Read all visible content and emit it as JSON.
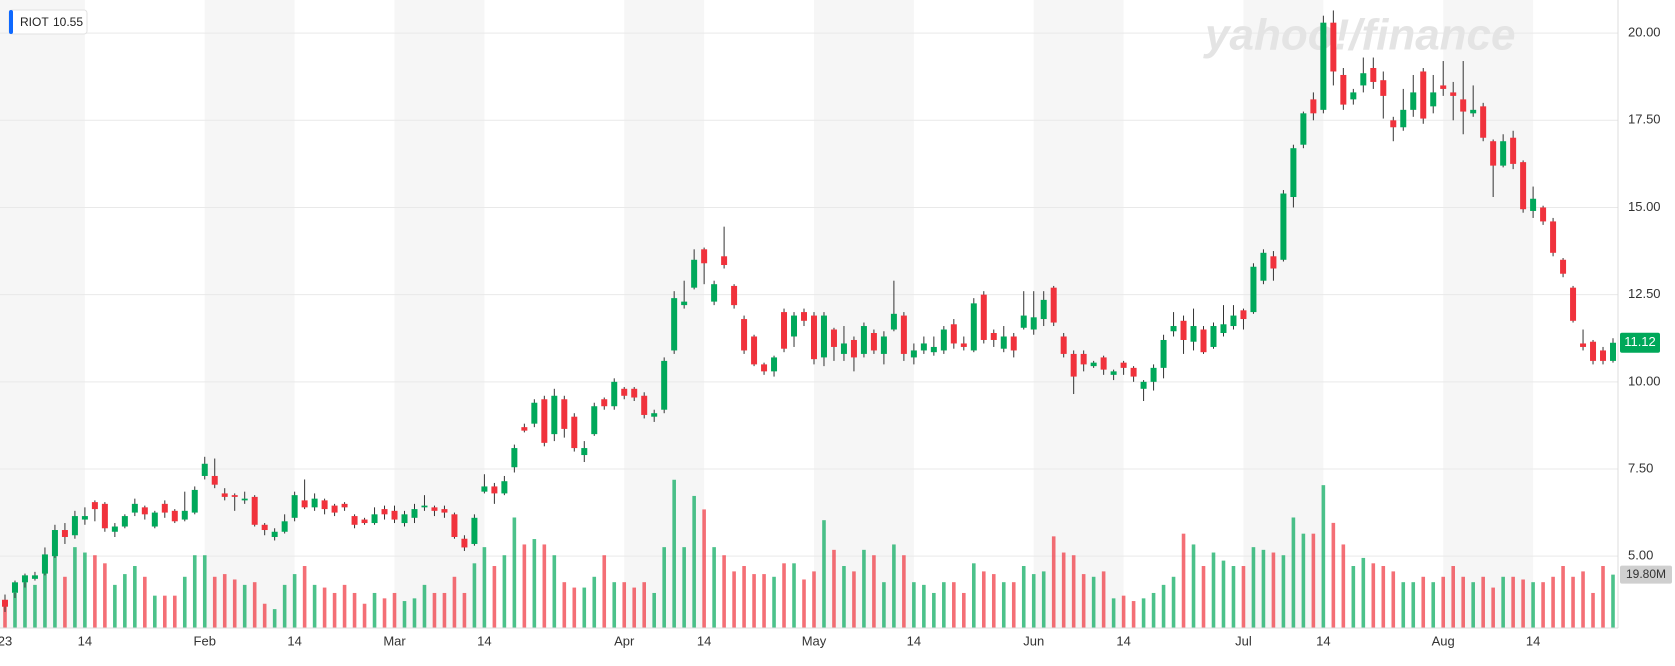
{
  "chart_data": {
    "type": "candlestick",
    "ticker": "RIOT",
    "ticker_value": "10.55",
    "watermark": "yahoo!/finance",
    "up_color": "#00a85a",
    "down_color": "#f0323c",
    "grid": true,
    "ylim": [
      2.94,
      20.95
    ],
    "yticks": [
      {
        "value": 5,
        "label": "5.00"
      },
      {
        "value": 7.5,
        "label": "7.50"
      },
      {
        "value": 10,
        "label": "10.00"
      },
      {
        "value": 12.5,
        "label": "12.50"
      },
      {
        "value": 15,
        "label": "15.00"
      },
      {
        "value": 17.5,
        "label": "17.50"
      },
      {
        "value": 20,
        "label": "20.00"
      }
    ],
    "y2lim": [
      0,
      233
    ],
    "price_tag": "11.12",
    "volume_tag": "19.80M",
    "categories": [
      "23",
      null,
      null,
      null,
      null,
      null,
      null,
      null,
      "14",
      null,
      null,
      null,
      null,
      null,
      null,
      null,
      null,
      null,
      null,
      null,
      "Feb",
      null,
      null,
      null,
      null,
      null,
      null,
      null,
      null,
      "14",
      null,
      null,
      null,
      null,
      null,
      null,
      null,
      null,
      null,
      "Mar",
      null,
      null,
      null,
      null,
      null,
      null,
      null,
      null,
      "14",
      null,
      null,
      null,
      null,
      null,
      null,
      null,
      null,
      null,
      null,
      null,
      null,
      null,
      "Apr",
      null,
      null,
      null,
      null,
      null,
      null,
      null,
      "14",
      null,
      null,
      null,
      null,
      null,
      null,
      null,
      null,
      null,
      null,
      "May",
      null,
      null,
      null,
      null,
      null,
      null,
      null,
      null,
      null,
      "14",
      null,
      null,
      null,
      null,
      null,
      null,
      null,
      null,
      null,
      null,
      null,
      "Jun",
      null,
      null,
      null,
      null,
      null,
      null,
      null,
      null,
      "14",
      null,
      null,
      null,
      null,
      null,
      null,
      null,
      null,
      null,
      null,
      null,
      "Jul",
      null,
      null,
      null,
      null,
      null,
      null,
      null,
      "14",
      null,
      null,
      null,
      null,
      null,
      null,
      null,
      null,
      null,
      null,
      null,
      "Aug",
      null,
      null,
      null,
      null,
      null,
      null,
      null,
      null,
      "14",
      null,
      null,
      null,
      null,
      null,
      null,
      null,
      null
    ],
    "open": [
      3.75,
      3.95,
      4.25,
      4.35,
      4.5,
      5.0,
      5.75,
      5.6,
      6.05,
      6.55,
      6.5,
      5.7,
      5.85,
      6.25,
      6.4,
      5.85,
      6.5,
      6.3,
      6.05,
      6.25,
      7.3,
      7.3,
      6.8,
      6.75,
      6.6,
      6.7,
      5.9,
      5.55,
      5.7,
      6.1,
      6.6,
      6.4,
      6.6,
      6.45,
      6.5,
      6.15,
      6.05,
      5.95,
      6.35,
      6.3,
      5.95,
      6.1,
      6.4,
      6.4,
      6.35,
      6.2,
      5.5,
      5.35,
      6.85,
      7.0,
      6.8,
      7.55,
      8.7,
      8.8,
      9.5,
      8.5,
      9.5,
      9.0,
      7.9,
      8.5,
      9.5,
      9.3,
      9.8,
      9.8,
      9.6,
      9.0,
      9.2,
      10.9,
      12.2,
      12.7,
      13.8,
      12.3,
      13.6,
      12.75,
      11.8,
      11.3,
      10.5,
      10.3,
      12.0,
      11.3,
      12.0,
      11.9,
      10.7,
      11.5,
      10.8,
      11.2,
      10.8,
      11.4,
      10.8,
      11.5,
      11.9,
      10.7,
      10.9,
      10.85,
      10.9,
      11.65,
      11.1,
      10.9,
      12.5,
      11.4,
      10.95,
      11.3,
      11.55,
      11.5,
      11.8,
      12.7,
      11.3,
      10.8,
      10.8,
      10.45,
      10.7,
      10.2,
      10.55,
      10.4,
      9.8,
      10.0,
      10.4,
      11.45,
      11.75,
      11.15,
      11.5,
      11.0,
      11.4,
      11.6,
      12.05,
      12.0,
      12.9,
      13.6,
      13.5,
      15.3,
      16.8,
      18.1,
      17.8,
      20.3,
      18.8,
      18.1,
      18.5,
      19.0,
      18.65,
      17.5,
      17.3,
      17.8,
      18.9,
      17.9,
      18.5,
      18.3,
      18.1,
      17.7,
      17.9,
      16.9,
      16.2,
      17.0,
      16.3,
      14.9,
      15.0,
      14.6,
      13.5,
      12.7,
      11.1,
      11.15,
      10.9,
      10.6
    ],
    "high": [
      3.9,
      4.3,
      4.5,
      4.55,
      5.25,
      5.9,
      5.95,
      6.3,
      6.4,
      6.6,
      6.55,
      5.95,
      6.2,
      6.65,
      6.45,
      6.3,
      6.6,
      6.35,
      6.85,
      7.0,
      7.85,
      7.8,
      6.95,
      6.8,
      6.85,
      6.75,
      5.95,
      5.8,
      6.2,
      6.85,
      7.2,
      6.8,
      6.65,
      6.5,
      6.55,
      6.2,
      6.1,
      6.4,
      6.45,
      6.45,
      6.3,
      6.5,
      6.75,
      6.45,
      6.45,
      6.25,
      5.6,
      6.2,
      7.35,
      7.1,
      7.3,
      8.2,
      8.8,
      9.5,
      9.6,
      9.8,
      9.6,
      9.1,
      8.3,
      9.4,
      9.55,
      10.1,
      9.85,
      9.85,
      9.7,
      9.2,
      10.7,
      12.6,
      12.9,
      13.8,
      13.85,
      12.9,
      14.45,
      12.8,
      11.9,
      11.35,
      10.55,
      10.75,
      12.1,
      12.0,
      12.1,
      12.0,
      12.0,
      11.55,
      11.6,
      11.3,
      11.7,
      11.5,
      11.45,
      12.9,
      12.0,
      11.1,
      11.3,
      11.3,
      11.6,
      11.8,
      11.3,
      12.4,
      12.6,
      11.5,
      11.6,
      11.4,
      12.6,
      12.6,
      12.6,
      12.75,
      11.4,
      10.9,
      10.9,
      10.6,
      10.75,
      10.35,
      10.6,
      10.45,
      10.05,
      10.5,
      11.35,
      12.0,
      11.9,
      12.1,
      11.6,
      11.7,
      12.2,
      12.2,
      12.1,
      13.4,
      13.8,
      13.75,
      15.5,
      16.8,
      17.75,
      18.3,
      20.5,
      20.65,
      19.0,
      18.4,
      19.3,
      19.3,
      18.9,
      17.6,
      18.4,
      18.8,
      19.0,
      18.8,
      19.2,
      18.6,
      19.2,
      18.5,
      18.0,
      16.95,
      17.1,
      17.2,
      16.35,
      15.6,
      15.05,
      14.7,
      13.55,
      12.75,
      11.5,
      11.2,
      11.0,
      11.25
    ],
    "low": [
      3.4,
      3.8,
      4.1,
      4.3,
      4.45,
      4.95,
      5.35,
      5.5,
      5.9,
      6.0,
      5.7,
      5.55,
      5.8,
      6.15,
      6.05,
      5.8,
      6.1,
      5.95,
      6.0,
      6.2,
      7.2,
      6.95,
      6.6,
      6.3,
      6.5,
      5.85,
      5.6,
      5.45,
      5.65,
      6.0,
      6.35,
      6.3,
      6.2,
      6.15,
      6.3,
      5.8,
      5.9,
      5.9,
      6.05,
      5.95,
      5.85,
      5.95,
      6.3,
      6.15,
      6.1,
      5.5,
      5.15,
      5.3,
      6.8,
      6.5,
      6.75,
      7.4,
      8.55,
      8.7,
      8.15,
      8.3,
      8.4,
      8.0,
      7.7,
      8.45,
      9.2,
      9.2,
      9.5,
      9.45,
      8.95,
      8.85,
      9.1,
      10.8,
      12.1,
      12.65,
      12.8,
      12.2,
      13.25,
      12.1,
      10.8,
      10.45,
      10.2,
      10.15,
      10.85,
      11.0,
      11.6,
      10.5,
      10.45,
      10.6,
      10.6,
      10.3,
      10.7,
      10.8,
      10.5,
      11.45,
      10.6,
      10.5,
      10.8,
      10.75,
      10.8,
      10.95,
      10.9,
      10.85,
      11.1,
      11.0,
      10.85,
      10.7,
      11.5,
      11.35,
      11.6,
      11.6,
      10.7,
      9.65,
      10.3,
      10.4,
      10.2,
      10.05,
      10.2,
      10.0,
      9.45,
      9.75,
      10.1,
      11.3,
      10.8,
      10.9,
      10.8,
      10.95,
      11.3,
      11.5,
      11.5,
      11.95,
      12.8,
      12.9,
      13.45,
      15.0,
      16.7,
      17.5,
      17.7,
      18.5,
      17.8,
      17.95,
      18.3,
      18.4,
      17.55,
      16.9,
      17.2,
      17.6,
      17.4,
      17.7,
      18.2,
      17.5,
      17.1,
      17.6,
      16.9,
      15.3,
      16.15,
      16.1,
      14.85,
      14.7,
      14.5,
      13.6,
      13.0,
      11.7,
      10.9,
      10.5,
      10.5,
      10.55
    ],
    "close": [
      3.55,
      4.25,
      4.45,
      4.45,
      5.05,
      5.75,
      5.55,
      6.15,
      6.15,
      6.35,
      5.8,
      5.85,
      6.15,
      6.5,
      6.2,
      6.25,
      6.25,
      6.0,
      6.3,
      6.9,
      7.65,
      7.05,
      6.7,
      6.7,
      6.65,
      5.9,
      5.75,
      5.7,
      6.0,
      6.75,
      6.4,
      6.65,
      6.35,
      6.25,
      6.4,
      5.9,
      5.95,
      6.2,
      6.2,
      6.05,
      6.2,
      6.35,
      6.45,
      6.3,
      6.25,
      5.55,
      5.25,
      6.1,
      7.0,
      6.8,
      7.15,
      8.1,
      8.6,
      9.4,
      8.25,
      9.6,
      8.65,
      8.1,
      8.1,
      9.3,
      9.3,
      10.0,
      9.6,
      9.55,
      9.05,
      9.1,
      10.6,
      12.4,
      12.3,
      13.5,
      13.4,
      12.8,
      13.35,
      12.2,
      10.9,
      10.5,
      10.3,
      10.7,
      10.95,
      11.9,
      11.75,
      10.65,
      11.9,
      11.0,
      11.1,
      10.7,
      11.6,
      10.9,
      11.3,
      11.95,
      10.8,
      10.9,
      11.1,
      11.0,
      11.5,
      11.1,
      11.0,
      12.25,
      11.2,
      11.2,
      11.3,
      10.9,
      11.9,
      11.85,
      12.35,
      11.7,
      10.8,
      10.15,
      10.5,
      10.55,
      10.35,
      10.3,
      10.4,
      10.15,
      10.0,
      10.4,
      11.2,
      11.6,
      11.2,
      11.6,
      10.85,
      11.6,
      11.65,
      11.9,
      11.8,
      13.3,
      13.7,
      13.25,
      15.4,
      16.7,
      17.7,
      17.7,
      20.3,
      18.9,
      17.95,
      18.3,
      18.85,
      18.6,
      18.2,
      17.3,
      17.8,
      18.3,
      17.55,
      18.3,
      18.4,
      18.2,
      17.75,
      17.8,
      17.0,
      16.2,
      16.9,
      16.25,
      14.95,
      15.25,
      14.6,
      13.7,
      13.1,
      11.75,
      11.0,
      10.6,
      10.6,
      11.12
    ],
    "volume": [
      8,
      13,
      17,
      16,
      27,
      35,
      19,
      30,
      28,
      27,
      24,
      16,
      20,
      23,
      19,
      12,
      12,
      12,
      19,
      27,
      27,
      19,
      20,
      18,
      16,
      17,
      9,
      7,
      16,
      20,
      23,
      16,
      15,
      13,
      16,
      13,
      9,
      13,
      11,
      13,
      10,
      11,
      16,
      13,
      13,
      19,
      13,
      24,
      30,
      23,
      27,
      41,
      31,
      33,
      31,
      27,
      17,
      15,
      15,
      19,
      27,
      17,
      17,
      15,
      17,
      13,
      30,
      55,
      30,
      49,
      44,
      30,
      27,
      21,
      23,
      20,
      20,
      19,
      24,
      24,
      18,
      21,
      40,
      29,
      23,
      21,
      29,
      27,
      17,
      31,
      27,
      17,
      16,
      13,
      17,
      17,
      13,
      24,
      21,
      20,
      17,
      17,
      23,
      20,
      21,
      34,
      28,
      27,
      20,
      19,
      21,
      11,
      12,
      10,
      11,
      13,
      16,
      19,
      35,
      31,
      23,
      28,
      25,
      23,
      23,
      30,
      29,
      28,
      27,
      41,
      35,
      35,
      53,
      39,
      31,
      23,
      26,
      24,
      23,
      21,
      17,
      17,
      19,
      17,
      19,
      23,
      19,
      17,
      19,
      15,
      19,
      19,
      18,
      17,
      17,
      19,
      23,
      19,
      21,
      13,
      23,
      19.8
    ]
  }
}
